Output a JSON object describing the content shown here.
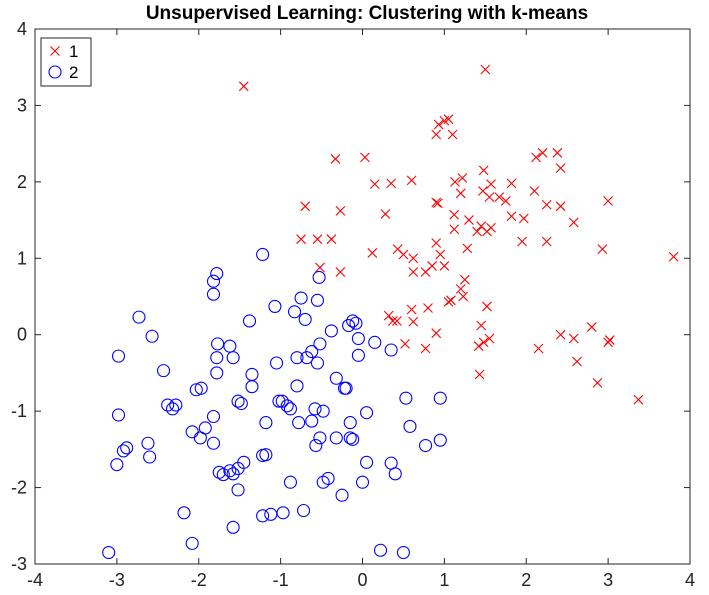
{
  "chart_data": {
    "type": "scatter",
    "title": "Unsupervised Learning: Clustering with k-means",
    "xlabel": "",
    "ylabel": "",
    "xlim": [
      -4,
      4
    ],
    "ylim": [
      -3,
      4
    ],
    "xticks": [
      -4,
      -3,
      -2,
      -1,
      0,
      1,
      2,
      3,
      4
    ],
    "yticks": [
      -3,
      -2,
      -1,
      0,
      1,
      2,
      3,
      4
    ],
    "grid": false,
    "legend_position": "top-left",
    "series": [
      {
        "name": "1",
        "marker": "x",
        "color": "#ff0000",
        "points": [
          [
            -1.45,
            3.25
          ],
          [
            1.5,
            3.47
          ],
          [
            1.05,
            2.82
          ],
          [
            1.0,
            2.8
          ],
          [
            0.93,
            2.75
          ],
          [
            1.1,
            2.62
          ],
          [
            0.9,
            2.62
          ],
          [
            -0.33,
            2.3
          ],
          [
            0.03,
            2.32
          ],
          [
            2.2,
            2.38
          ],
          [
            2.38,
            2.38
          ],
          [
            2.12,
            2.32
          ],
          [
            2.42,
            2.18
          ],
          [
            1.48,
            2.15
          ],
          [
            1.22,
            2.05
          ],
          [
            1.13,
            2.0
          ],
          [
            0.35,
            1.98
          ],
          [
            0.15,
            1.97
          ],
          [
            0.6,
            2.02
          ],
          [
            1.57,
            1.97
          ],
          [
            1.82,
            1.98
          ],
          [
            1.47,
            1.88
          ],
          [
            2.1,
            1.88
          ],
          [
            1.2,
            1.85
          ],
          [
            1.67,
            1.8
          ],
          [
            1.55,
            1.8
          ],
          [
            1.75,
            1.75
          ],
          [
            0.9,
            1.73
          ],
          [
            0.92,
            1.72
          ],
          [
            1.97,
            1.52
          ],
          [
            2.42,
            1.68
          ],
          [
            3.0,
            1.75
          ],
          [
            2.25,
            1.7
          ],
          [
            -0.7,
            1.68
          ],
          [
            -0.27,
            1.62
          ],
          [
            0.28,
            1.58
          ],
          [
            1.12,
            1.57
          ],
          [
            1.3,
            1.5
          ],
          [
            1.82,
            1.55
          ],
          [
            1.45,
            1.42
          ],
          [
            1.57,
            1.4
          ],
          [
            1.52,
            1.35
          ],
          [
            2.58,
            1.47
          ],
          [
            1.12,
            1.38
          ],
          [
            1.4,
            1.35
          ],
          [
            -0.75,
            1.25
          ],
          [
            -0.55,
            1.25
          ],
          [
            -0.38,
            1.25
          ],
          [
            0.9,
            1.2
          ],
          [
            1.95,
            1.22
          ],
          [
            2.25,
            1.22
          ],
          [
            2.93,
            1.12
          ],
          [
            0.12,
            1.07
          ],
          [
            0.43,
            1.12
          ],
          [
            0.5,
            1.05
          ],
          [
            1.28,
            1.13
          ],
          [
            0.62,
            1.0
          ],
          [
            0.95,
            1.05
          ],
          [
            0.85,
            0.9
          ],
          [
            1.0,
            0.9
          ],
          [
            1.2,
            0.6
          ],
          [
            1.25,
            0.72
          ],
          [
            1.23,
            0.5
          ],
          [
            3.8,
            1.02
          ],
          [
            0.62,
            0.82
          ],
          [
            0.77,
            0.82
          ],
          [
            -0.27,
            0.82
          ],
          [
            -0.52,
            0.88
          ],
          [
            1.05,
            0.43
          ],
          [
            1.08,
            0.45
          ],
          [
            0.32,
            0.25
          ],
          [
            0.37,
            0.18
          ],
          [
            0.42,
            0.18
          ],
          [
            0.6,
            0.33
          ],
          [
            0.8,
            0.35
          ],
          [
            1.52,
            0.37
          ],
          [
            1.45,
            0.12
          ],
          [
            0.62,
            0.17
          ],
          [
            0.9,
            0.02
          ],
          [
            2.42,
            0.0
          ],
          [
            2.8,
            0.1
          ],
          [
            2.58,
            -0.05
          ],
          [
            3.0,
            -0.1
          ],
          [
            3.02,
            -0.07
          ],
          [
            0.52,
            -0.12
          ],
          [
            0.77,
            -0.18
          ],
          [
            1.42,
            -0.15
          ],
          [
            1.48,
            -0.1
          ],
          [
            1.55,
            -0.05
          ],
          [
            2.15,
            -0.18
          ],
          [
            2.62,
            -0.35
          ],
          [
            1.43,
            -0.52
          ],
          [
            2.87,
            -0.63
          ],
          [
            3.37,
            -0.85
          ]
        ]
      },
      {
        "name": "2",
        "marker": "o",
        "color": "#0000ff",
        "points": [
          [
            -1.22,
            1.05
          ],
          [
            -1.78,
            0.8
          ],
          [
            -1.82,
            0.7
          ],
          [
            -1.82,
            0.53
          ],
          [
            -0.53,
            0.75
          ],
          [
            -0.75,
            0.48
          ],
          [
            -0.55,
            0.45
          ],
          [
            -1.07,
            0.37
          ],
          [
            -2.73,
            0.23
          ],
          [
            -2.57,
            -0.02
          ],
          [
            -0.83,
            0.3
          ],
          [
            -0.7,
            0.2
          ],
          [
            -1.38,
            0.18
          ],
          [
            -0.08,
            0.15
          ],
          [
            -0.12,
            0.18
          ],
          [
            -0.17,
            0.12
          ],
          [
            -0.38,
            0.05
          ],
          [
            -1.77,
            -0.12
          ],
          [
            -1.62,
            -0.15
          ],
          [
            -0.52,
            -0.12
          ],
          [
            -0.05,
            -0.05
          ],
          [
            0.15,
            -0.1
          ],
          [
            0.35,
            -0.2
          ],
          [
            -0.62,
            -0.22
          ],
          [
            -0.68,
            -0.3
          ],
          [
            -0.05,
            -0.27
          ],
          [
            -1.58,
            -0.3
          ],
          [
            -1.78,
            -0.3
          ],
          [
            -0.8,
            -0.3
          ],
          [
            -0.55,
            -0.37
          ],
          [
            -1.05,
            -0.37
          ],
          [
            -2.98,
            -0.28
          ],
          [
            -2.43,
            -0.47
          ],
          [
            -1.35,
            -0.52
          ],
          [
            -1.78,
            -0.5
          ],
          [
            -1.35,
            -0.68
          ],
          [
            -0.32,
            -0.57
          ],
          [
            -1.97,
            -0.7
          ],
          [
            -2.03,
            -0.72
          ],
          [
            -0.22,
            -0.7
          ],
          [
            -0.8,
            -0.67
          ],
          [
            -0.2,
            -0.7
          ],
          [
            -1.52,
            -0.87
          ],
          [
            -1.48,
            -0.9
          ],
          [
            -2.38,
            -0.92
          ],
          [
            -2.28,
            -0.92
          ],
          [
            -2.32,
            -0.97
          ],
          [
            -1.02,
            -0.87
          ],
          [
            -0.98,
            -0.87
          ],
          [
            -0.92,
            -0.93
          ],
          [
            -0.88,
            -0.97
          ],
          [
            -0.58,
            -0.97
          ],
          [
            -0.48,
            -1.0
          ],
          [
            0.53,
            -0.83
          ],
          [
            0.95,
            -0.83
          ],
          [
            0.05,
            -1.02
          ],
          [
            -2.98,
            -1.05
          ],
          [
            -1.82,
            -1.07
          ],
          [
            -1.92,
            -1.22
          ],
          [
            -1.18,
            -1.15
          ],
          [
            -0.62,
            -1.13
          ],
          [
            -0.78,
            -1.15
          ],
          [
            -0.15,
            -1.15
          ],
          [
            -2.08,
            -1.27
          ],
          [
            -1.98,
            -1.35
          ],
          [
            -1.82,
            -1.42
          ],
          [
            -0.52,
            -1.35
          ],
          [
            -0.32,
            -1.35
          ],
          [
            -0.15,
            -1.35
          ],
          [
            -0.12,
            -1.37
          ],
          [
            -0.57,
            -1.45
          ],
          [
            0.58,
            -1.2
          ],
          [
            0.77,
            -1.45
          ],
          [
            0.95,
            -1.38
          ],
          [
            -2.62,
            -1.42
          ],
          [
            -2.88,
            -1.48
          ],
          [
            -2.92,
            -1.52
          ],
          [
            -2.6,
            -1.6
          ],
          [
            -1.22,
            -1.58
          ],
          [
            -1.18,
            -1.57
          ],
          [
            -1.45,
            -1.67
          ],
          [
            -1.52,
            -1.75
          ],
          [
            -1.62,
            -1.78
          ],
          [
            -1.75,
            -1.8
          ],
          [
            -1.58,
            -1.82
          ],
          [
            -1.7,
            -1.83
          ],
          [
            -3.0,
            -1.7
          ],
          [
            0.05,
            -1.67
          ],
          [
            0.35,
            -1.68
          ],
          [
            0.4,
            -1.82
          ],
          [
            -0.42,
            -1.88
          ],
          [
            -0.48,
            -1.93
          ],
          [
            -1.52,
            -2.03
          ],
          [
            0.0,
            -1.93
          ],
          [
            -0.88,
            -1.93
          ],
          [
            -0.25,
            -2.1
          ],
          [
            -0.72,
            -2.3
          ],
          [
            -1.12,
            -2.35
          ],
          [
            -1.22,
            -2.37
          ],
          [
            -0.97,
            -2.33
          ],
          [
            -2.18,
            -2.33
          ],
          [
            -1.58,
            -2.52
          ],
          [
            -2.08,
            -2.73
          ],
          [
            -3.1,
            -2.85
          ],
          [
            0.22,
            -2.82
          ],
          [
            0.5,
            -2.85
          ]
        ]
      }
    ]
  }
}
